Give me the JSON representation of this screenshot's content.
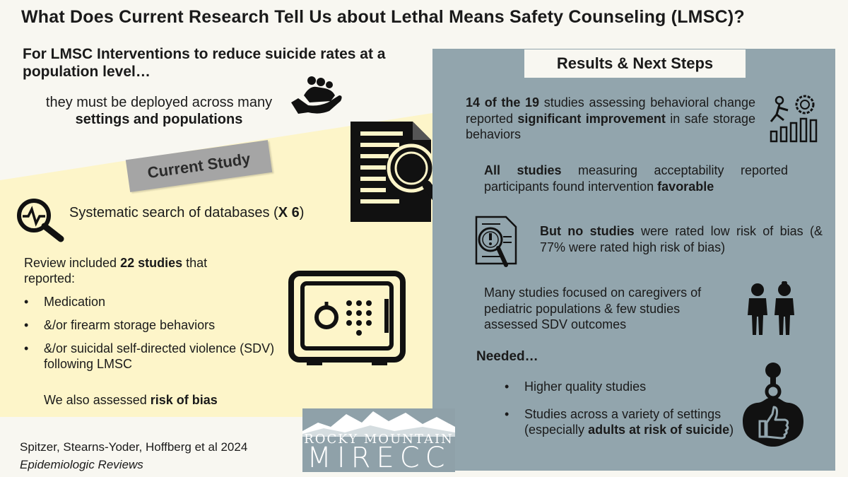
{
  "title": "What Does Current Research Tell Us about  Lethal Means Safety Counseling (LMSC)?",
  "intro": {
    "heading": "For LMSC Interventions to reduce suicide rates at a population level…",
    "body_plain": "they must be deployed across many",
    "body_bold": "settings and populations"
  },
  "current_study": {
    "label": "Current Study",
    "search_plain": "Systematic search of databases (",
    "search_bold": "X 6",
    "search_end": ")",
    "review_pre": "Review included",
    "review_bold": "22 studies",
    "review_post": "that reported:",
    "bullets": [
      "Medication",
      "&/or firearm storage behaviors",
      "&/or suicidal self-directed violence (SDV) following LMSC"
    ],
    "bias_plain": "We also assessed",
    "bias_bold": "risk of bias"
  },
  "citation": {
    "authors": "Spitzer, Stearns-Yoder, Hoffberg et al 2024",
    "journal": "Epidemiologic Reviews"
  },
  "results": {
    "heading": "Results & Next Steps",
    "f1_bold1": "14 of the 19",
    "f1_plain1": "studies assessing behavioral change reported",
    "f1_bold2": "significant improvement",
    "f1_plain2": "in safe storage behaviors",
    "f2_bold1": "All studies",
    "f2_plain1": "measuring acceptability reported participants found intervention",
    "f2_bold2": "favorable",
    "f3_bold1": "But no studies",
    "f3_plain1": "were rated low risk of bias (& 77% were rated high risk of bias)",
    "f4": "Many studies focused on caregivers of pediatric populations & few studies assessed SDV outcomes",
    "needed": "Needed…",
    "next1": "Higher quality studies",
    "next2_plain": "Studies across a variety of settings (especially",
    "next2_bold": "adults at risk of suicide",
    "next2_end": ")"
  },
  "logo": {
    "line1": "ROCKY MOUNTAIN",
    "line2": "MIRECC"
  },
  "colors": {
    "background": "#f8f7f1",
    "yellow_panel": "#fdf5c9",
    "right_panel": "#92a5ad",
    "label_gray": "#a5a5a5"
  },
  "icons": [
    "helping-hands-icon",
    "document-search-icon",
    "heartbeat-magnifier-icon",
    "safe-icon",
    "growth-chart-icon",
    "risk-document-icon",
    "children-icon",
    "thumbs-up-badge-icon"
  ]
}
